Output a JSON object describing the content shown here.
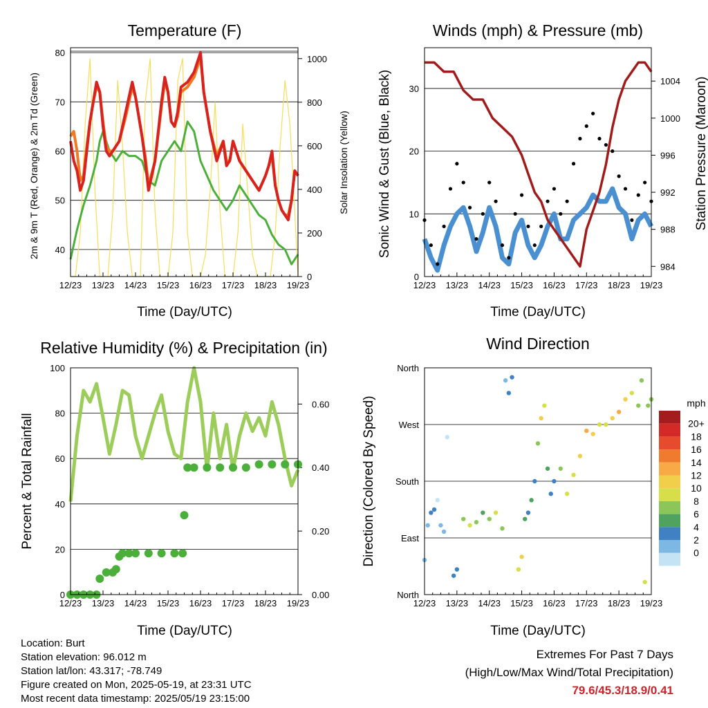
{
  "info": {
    "location": "Location: Burt",
    "elevation": "Station elevation: 96.012 m",
    "latlon": "Station lat/lon: 43.317; -78.749",
    "created": "Figure created on Mon, 2025-05-19, at 23:31 UTC",
    "recent": "Most recent data timestamp: 2025/05/19 23:15:00"
  },
  "extremes": {
    "title": "Extremes For Past 7 Days",
    "subtitle": "(High/Low/Max Wind/Total Precipitation)",
    "values": "79.6/45.3/18.9/0.41"
  },
  "colors": {
    "temp2m": "#d7231f",
    "temp9m": "#f07a24",
    "dewpoint": "#4caf3c",
    "solar": "#f5dd5a",
    "wind": "#4a90d0",
    "gust": "#000000",
    "pressure": "#a01c1c",
    "rh": "#9ccc5a",
    "precip": "#4caf3c"
  },
  "chart_data": [
    {
      "type": "line",
      "title": "Temperature (F)",
      "xlabel": "Time (Day/UTC)",
      "ylabel": "2m & 9m T (Red, Orange) & 2m Td (Green)",
      "y2label": "Solar Insolation (Yellow)",
      "x_ticks": [
        "12/23",
        "13/23",
        "14/23",
        "15/23",
        "16/23",
        "17/23",
        "18/23",
        "19/23"
      ],
      "y_ticks": [
        40,
        50,
        60,
        70,
        80
      ],
      "y2_ticks": [
        0,
        200,
        400,
        600,
        800,
        1000
      ],
      "ylim": [
        34.5,
        81
      ],
      "y2lim": [
        0,
        1050
      ],
      "xlim": [
        0,
        7
      ],
      "series": [
        {
          "name": "2m T",
          "x": [
            0,
            0.1,
            0.2,
            0.3,
            0.4,
            0.5,
            0.6,
            0.7,
            0.8,
            0.9,
            1.0,
            1.1,
            1.2,
            1.3,
            1.5,
            1.7,
            1.9,
            2.0,
            2.2,
            2.3,
            2.4,
            2.6,
            2.8,
            2.9,
            3.0,
            3.1,
            3.2,
            3.3,
            3.4,
            3.6,
            3.8,
            4.0,
            4.1,
            4.3,
            4.5,
            4.7,
            4.8,
            4.9,
            5.0,
            5.1,
            5.2,
            5.4,
            5.6,
            5.8,
            6.0,
            6.1,
            6.2,
            6.3,
            6.4,
            6.5,
            6.6,
            6.7,
            6.8,
            6.9,
            7.0
          ],
          "y": [
            62,
            58,
            56,
            52,
            54,
            60,
            66,
            70,
            74,
            72,
            65,
            60,
            59,
            60,
            62,
            68,
            74,
            71,
            63,
            58,
            52,
            58,
            70,
            75,
            72,
            66,
            65,
            68,
            73,
            74,
            76,
            80,
            72,
            64,
            58,
            62,
            57,
            58,
            62,
            60,
            58,
            56,
            54,
            52,
            55,
            57,
            60,
            53,
            50,
            48,
            47,
            46,
            50,
            56,
            55
          ]
        },
        {
          "name": "9m T",
          "x": [
            0,
            0.1,
            0.2,
            0.3,
            0.4,
            0.5,
            0.6,
            0.7,
            0.8,
            0.9,
            1.0,
            1.1,
            1.2,
            1.3,
            1.5,
            1.7,
            1.9,
            2.0,
            2.2,
            2.3,
            2.4,
            2.6,
            2.8,
            2.9,
            3.0,
            3.1,
            3.2,
            3.3,
            3.4,
            3.6,
            3.8,
            4.0,
            4.1,
            4.3,
            4.5,
            4.7,
            4.8,
            4.9,
            5.0,
            5.1,
            5.2,
            5.4,
            5.6,
            5.8,
            6.0,
            6.1,
            6.2,
            6.3,
            6.4,
            6.5,
            6.6,
            6.7,
            6.8,
            6.9,
            7.0
          ],
          "y": [
            63,
            64,
            60,
            54,
            55,
            61,
            66,
            70,
            73,
            72,
            66,
            61,
            60,
            60,
            62,
            67,
            73,
            71,
            63,
            59,
            53,
            58,
            69,
            74,
            72,
            66,
            65,
            67,
            72,
            73,
            75,
            79,
            72,
            64,
            59,
            62,
            58,
            58,
            62,
            60,
            58,
            56,
            54,
            52,
            55,
            57,
            59,
            53,
            50,
            48,
            47,
            47,
            50,
            56,
            55
          ]
        },
        {
          "name": "2m Td",
          "x": [
            0,
            0.2,
            0.4,
            0.6,
            0.8,
            0.9,
            1.0,
            1.2,
            1.4,
            1.6,
            1.8,
            2.0,
            2.2,
            2.4,
            2.6,
            2.8,
            3.0,
            3.2,
            3.4,
            3.6,
            3.8,
            4.0,
            4.2,
            4.4,
            4.6,
            4.8,
            5.0,
            5.2,
            5.4,
            5.6,
            5.8,
            6.0,
            6.2,
            6.4,
            6.6,
            6.8,
            7.0
          ],
          "y": [
            38,
            44,
            49,
            53,
            58,
            62,
            64,
            60,
            58,
            60,
            59,
            59,
            58,
            54,
            53,
            58,
            60,
            62,
            60,
            66,
            64,
            58,
            55,
            52,
            50,
            48,
            50,
            53,
            51,
            49,
            47,
            46,
            43,
            41,
            40,
            37,
            39
          ]
        },
        {
          "name": "Solar",
          "x": [
            0,
            0.15,
            0.3,
            0.45,
            0.6,
            0.75,
            0.9,
            1.0,
            1.15,
            1.3,
            1.45,
            1.6,
            1.75,
            1.9,
            2.0,
            2.15,
            2.3,
            2.45,
            2.6,
            2.75,
            2.9,
            3.0,
            3.15,
            3.3,
            3.45,
            3.6,
            3.75,
            3.9,
            4.0,
            4.15,
            4.3,
            4.45,
            4.6,
            4.75,
            4.9,
            5.0,
            5.15,
            5.3,
            5.45,
            5.6,
            5.75,
            5.9,
            6.0,
            6.15,
            6.3,
            6.45,
            6.6,
            6.75,
            6.9,
            7.0
          ],
          "y": [
            0,
            0,
            200,
            700,
            1000,
            400,
            0,
            0,
            0,
            300,
            900,
            600,
            200,
            0,
            0,
            0,
            800,
            1000,
            300,
            0,
            0,
            0,
            200,
            900,
            1000,
            200,
            0,
            0,
            0,
            100,
            400,
            800,
            300,
            0,
            0,
            0,
            200,
            700,
            400,
            100,
            0,
            0,
            0,
            0,
            200,
            600,
            900,
            700,
            300,
            0
          ]
        }
      ]
    },
    {
      "type": "scatter",
      "title": "Winds (mph) & Pressure (mb)",
      "xlabel": "Time (Day/UTC)",
      "ylabel": "Sonic Wind & Gust (Blue, Black)",
      "y2label": "Station Pressure (Maroon)",
      "x_ticks": [
        "12/23",
        "13/23",
        "14/23",
        "15/23",
        "16/23",
        "17/23",
        "18/23",
        "19/23"
      ],
      "y_ticks": [
        0,
        10,
        20,
        30
      ],
      "y2_ticks": [
        984,
        988,
        992,
        996,
        1000,
        1004
      ],
      "ylim": [
        0,
        36.5
      ],
      "y2lim": [
        982.9,
        1007.6
      ],
      "xlim": [
        0,
        7
      ],
      "series": [
        {
          "name": "Wind",
          "x": [
            0,
            0.2,
            0.4,
            0.6,
            0.8,
            1.0,
            1.2,
            1.4,
            1.6,
            1.8,
            2.0,
            2.2,
            2.4,
            2.6,
            2.8,
            3.0,
            3.2,
            3.4,
            3.6,
            3.8,
            4.0,
            4.2,
            4.4,
            4.6,
            4.8,
            5.0,
            5.2,
            5.4,
            5.6,
            5.8,
            6.0,
            6.2,
            6.4,
            6.6,
            6.8,
            7.0
          ],
          "y": [
            6,
            3,
            1,
            5,
            8,
            10,
            11,
            8,
            4,
            7,
            11,
            8,
            3,
            2,
            7,
            9,
            5,
            3,
            5,
            8,
            10,
            6,
            6,
            9,
            10,
            11,
            13,
            12,
            12,
            14,
            11,
            10,
            6,
            9,
            10,
            8
          ]
        },
        {
          "name": "Gust",
          "x": [
            0,
            0.2,
            0.4,
            0.6,
            0.8,
            1.0,
            1.2,
            1.4,
            1.6,
            1.8,
            2.0,
            2.2,
            2.4,
            2.6,
            2.8,
            3.0,
            3.2,
            3.4,
            3.6,
            3.8,
            4.0,
            4.2,
            4.4,
            4.6,
            4.8,
            5.0,
            5.2,
            5.4,
            5.6,
            5.8,
            6.0,
            6.2,
            6.4,
            6.6,
            6.8,
            7.0
          ],
          "y": [
            9,
            5,
            2,
            8,
            14,
            18,
            15,
            11,
            6,
            10,
            15,
            12,
            5,
            3,
            10,
            13,
            8,
            5,
            8,
            12,
            14,
            10,
            12,
            18,
            22,
            24,
            26,
            22,
            21,
            20,
            16,
            14,
            9,
            13,
            15,
            12
          ]
        },
        {
          "name": "Pressure",
          "x": [
            0,
            0.3,
            0.6,
            0.9,
            1.2,
            1.5,
            1.8,
            2.1,
            2.4,
            2.7,
            3.0,
            3.2,
            3.4,
            3.6,
            3.8,
            4.0,
            4.2,
            4.4,
            4.6,
            4.8,
            5.0,
            5.2,
            5.4,
            5.6,
            5.8,
            6.0,
            6.2,
            6.4,
            6.6,
            6.8,
            7.0
          ],
          "y": [
            1006,
            1006,
            1005,
            1005,
            1003,
            1002,
            1002,
            1000,
            999,
            998,
            996,
            994,
            992,
            991,
            989,
            988,
            987,
            986,
            985,
            984,
            988,
            990,
            992,
            995,
            999,
            1002,
            1004,
            1005,
            1006,
            1006,
            1005
          ]
        }
      ]
    },
    {
      "type": "line",
      "title": "Relative Humidity (%) & Precipitation (in)",
      "xlabel": "Time (Day/UTC)",
      "ylabel": "Percent & Total Rainfall",
      "x_ticks": [
        "12/23",
        "13/23",
        "14/23",
        "15/23",
        "16/23",
        "17/23",
        "18/23",
        "19/23"
      ],
      "y_ticks": [
        0,
        20,
        40,
        60,
        80,
        100
      ],
      "y2_ticks": [
        "0.00",
        "0.20",
        "0.40",
        "0.60"
      ],
      "ylim": [
        0,
        100
      ],
      "y2lim": [
        0,
        0.714
      ],
      "xlim": [
        0,
        7
      ],
      "series": [
        {
          "name": "RH",
          "x": [
            0,
            0.2,
            0.4,
            0.6,
            0.8,
            1.0,
            1.2,
            1.4,
            1.6,
            1.8,
            2.0,
            2.2,
            2.4,
            2.6,
            2.8,
            3.0,
            3.2,
            3.4,
            3.6,
            3.8,
            4.0,
            4.2,
            4.4,
            4.6,
            4.8,
            5.0,
            5.2,
            5.4,
            5.6,
            5.8,
            6.0,
            6.2,
            6.4,
            6.6,
            6.8,
            7.0
          ],
          "y": [
            41,
            70,
            90,
            85,
            93,
            78,
            62,
            75,
            90,
            88,
            70,
            60,
            70,
            80,
            88,
            72,
            62,
            60,
            85,
            100,
            85,
            55,
            80,
            60,
            75,
            55,
            70,
            80,
            72,
            78,
            70,
            85,
            75,
            60,
            48,
            55
          ]
        },
        {
          "name": "Precip",
          "x": [
            0,
            0.2,
            0.4,
            0.6,
            0.8,
            0.9,
            1.1,
            1.3,
            1.4,
            1.5,
            1.6,
            1.8,
            2.0,
            2.4,
            2.8,
            3.2,
            3.45,
            3.5,
            3.6,
            3.8,
            4.2,
            4.6,
            5.0,
            5.4,
            5.8,
            6.2,
            6.6,
            7.0
          ],
          "y": [
            0,
            0,
            0,
            0,
            0,
            0.05,
            0.07,
            0.07,
            0.08,
            0.12,
            0.13,
            0.13,
            0.13,
            0.13,
            0.13,
            0.13,
            0.13,
            0.25,
            0.4,
            0.4,
            0.4,
            0.4,
            0.4,
            0.4,
            0.41,
            0.41,
            0.41,
            0.41
          ]
        }
      ]
    },
    {
      "type": "scatter",
      "title": "Wind Direction",
      "xlabel": "Time (Day/UTC)",
      "ylabel": "Direction (Colored By Speed)",
      "x_ticks": [
        "12/23",
        "13/23",
        "14/23",
        "15/23",
        "16/23",
        "17/23",
        "18/23",
        "19/23"
      ],
      "y_ticks": [
        "North",
        "East",
        "South",
        "West",
        "North"
      ],
      "xlim": [
        0,
        7
      ],
      "ylim": [
        0,
        360
      ],
      "colorbar": {
        "title": "mph",
        "labels": [
          "20+",
          "18",
          "16",
          "14",
          "12",
          "10",
          "8",
          "6",
          "4",
          "2",
          "0"
        ],
        "colors": [
          "#a51c1f",
          "#d42a27",
          "#e74b2e",
          "#f07b2e",
          "#f7aa45",
          "#f2cf4a",
          "#d6df4a",
          "#8cc65a",
          "#4fa35f",
          "#3f81c2",
          "#7cb8e3",
          "#c4e3f4"
        ]
      },
      "series": [
        {
          "name": "Direction",
          "x": [
            0,
            0.1,
            0.2,
            0.3,
            0.4,
            0.5,
            0.6,
            0.7,
            0.9,
            1.0,
            1.2,
            1.4,
            1.6,
            1.8,
            2.0,
            2.2,
            2.4,
            2.5,
            2.6,
            2.7,
            2.9,
            3.0,
            3.1,
            3.2,
            3.3,
            3.4,
            3.5,
            3.6,
            3.7,
            3.8,
            3.9,
            4.0,
            4.2,
            4.4,
            4.6,
            4.8,
            5.0,
            5.2,
            5.4,
            5.6,
            5.8,
            6.0,
            6.2,
            6.4,
            6.6,
            6.7,
            6.8,
            6.9,
            7.0
          ],
          "y": [
            55,
            110,
            130,
            135,
            150,
            110,
            100,
            250,
            30,
            40,
            120,
            110,
            115,
            130,
            120,
            130,
            105,
            340,
            320,
            345,
            40,
            60,
            120,
            130,
            150,
            180,
            240,
            280,
            300,
            200,
            160,
            180,
            200,
            160,
            190,
            220,
            260,
            255,
            270,
            270,
            280,
            290,
            310,
            320,
            300,
            340,
            20,
            300,
            310
          ],
          "speed": [
            2,
            3,
            4,
            4,
            1,
            2,
            2,
            0,
            4,
            5,
            8,
            10,
            9,
            7,
            8,
            11,
            8,
            3,
            4,
            5,
            10,
            12,
            6,
            5,
            6,
            4,
            9,
            13,
            10,
            7,
            5,
            5,
            9,
            11,
            10,
            13,
            14,
            12,
            10,
            11,
            12,
            14,
            13,
            10,
            9,
            8,
            11,
            8,
            9
          ]
        }
      ]
    }
  ]
}
